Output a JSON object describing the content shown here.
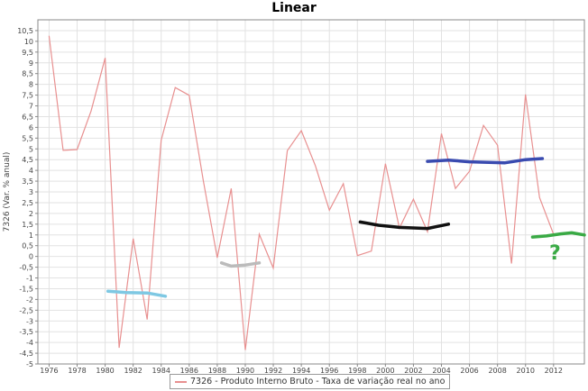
{
  "chart_data": {
    "type": "line",
    "title": "Linear",
    "ylabel": "7326 (Var. % anual)",
    "xlabel": "",
    "ylim": [
      -5,
      11
    ],
    "xlim": [
      1975.2,
      2014.2
    ],
    "grid": true,
    "legend_position": "bottom",
    "series_color": "#e89090",
    "yticks": [
      "-5",
      "-4,5",
      "-4",
      "-3,5",
      "-3",
      "-2,5",
      "-2",
      "-1,5",
      "-1",
      "-0,5",
      "0",
      "0,5",
      "1",
      "1,5",
      "2",
      "2,5",
      "3",
      "3,5",
      "4",
      "4,5",
      "5",
      "5,5",
      "6",
      "6,5",
      "7",
      "7,5",
      "8",
      "8,5",
      "9",
      "9,5",
      "10",
      "10,5"
    ],
    "ytick_values": [
      -5,
      -4.5,
      -4,
      -3.5,
      -3,
      -2.5,
      -2,
      -1.5,
      -1,
      -0.5,
      0,
      0.5,
      1,
      1.5,
      2,
      2.5,
      3,
      3.5,
      4,
      4.5,
      5,
      5.5,
      6,
      6.5,
      7,
      7.5,
      8,
      8.5,
      9,
      9.5,
      10,
      10.5
    ],
    "xticks": [
      "1976",
      "1978",
      "1980",
      "1982",
      "1984",
      "1986",
      "1988",
      "1990",
      "1992",
      "1994",
      "1996",
      "1998",
      "2000",
      "2002",
      "2004",
      "2006",
      "2008",
      "2010",
      "2012"
    ],
    "xtick_values": [
      1976,
      1978,
      1980,
      1982,
      1984,
      1986,
      1988,
      1990,
      1992,
      1994,
      1996,
      1998,
      2000,
      2002,
      2004,
      2006,
      2008,
      2010,
      2012
    ],
    "series": [
      {
        "name": "7326 - Produto Interno Bruto - Taxa de variação real no ano",
        "x": [
          1976,
          1977,
          1978,
          1979,
          1980,
          1981,
          1982,
          1983,
          1984,
          1985,
          1986,
          1987,
          1988,
          1989,
          1990,
          1991,
          1992,
          1993,
          1994,
          1995,
          1996,
          1997,
          1998,
          1999,
          2000,
          2001,
          2002,
          2003,
          2004,
          2005,
          2006,
          2007,
          2008,
          2009,
          2010,
          2011,
          2012
        ],
        "values": [
          10.26,
          4.93,
          4.97,
          6.76,
          9.23,
          -4.25,
          0.83,
          -2.93,
          5.4,
          7.85,
          7.49,
          3.53,
          -0.06,
          3.16,
          -4.35,
          1.03,
          -0.54,
          4.92,
          5.85,
          4.22,
          2.15,
          3.38,
          0.04,
          0.25,
          4.31,
          1.31,
          2.66,
          1.15,
          5.71,
          3.16,
          3.96,
          6.09,
          5.17,
          -0.33,
          7.53,
          2.73,
          1.03
        ]
      }
    ],
    "annotations": [
      {
        "kind": "freehand-stroke",
        "color": "#7ec8e3",
        "x": [
          1980.2,
          1981.5,
          1983,
          1984.3
        ],
        "y": [
          -1.62,
          -1.68,
          -1.7,
          -1.85
        ]
      },
      {
        "kind": "freehand-stroke",
        "color": "#bbbbbb",
        "x": [
          1988.3,
          1989,
          1990,
          1991
        ],
        "y": [
          -0.3,
          -0.45,
          -0.4,
          -0.3
        ]
      },
      {
        "kind": "freehand-stroke",
        "color": "#111111",
        "x": [
          1998.2,
          1999.5,
          2001,
          2003,
          2004.5
        ],
        "y": [
          1.6,
          1.45,
          1.35,
          1.3,
          1.5
        ]
      },
      {
        "kind": "freehand-stroke",
        "color": "#3a4bb0",
        "x": [
          2003,
          2004.5,
          2006,
          2008.5,
          2010,
          2011.2
        ],
        "y": [
          4.42,
          4.48,
          4.4,
          4.35,
          4.5,
          4.55
        ]
      },
      {
        "kind": "freehand-stroke",
        "color": "#3aaa45",
        "x": [
          2010.5,
          2011.5,
          2012.5,
          2013.3,
          2014.2
        ],
        "y": [
          0.9,
          0.95,
          1.05,
          1.1,
          1.0
        ]
      },
      {
        "kind": "freehand-text",
        "color": "#3aaa45",
        "text": "?",
        "x": 2012.1,
        "y": -0.15
      }
    ]
  }
}
